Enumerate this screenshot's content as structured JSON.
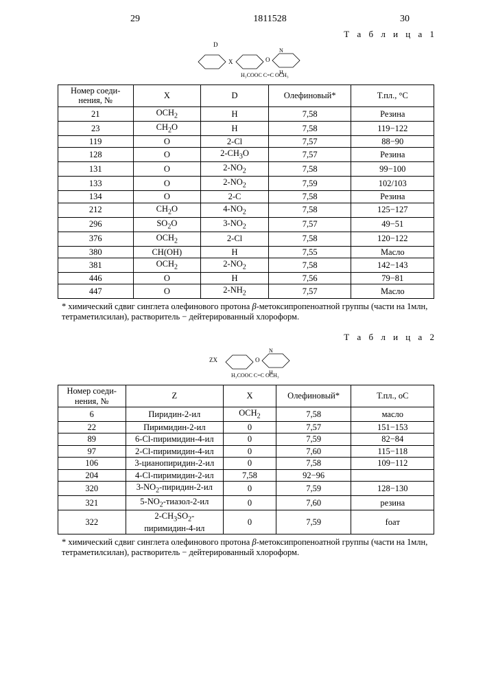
{
  "header": {
    "left_page": "29",
    "doc_number": "1811528",
    "right_page": "30"
  },
  "table1": {
    "label": "Т а б л и ц а  1",
    "chem_frag": {
      "line1": "D",
      "line2": "X",
      "line3": "O",
      "line4": "N",
      "line5": "H₃COOC    C=C    OCH₃",
      "line6": "H"
    },
    "headers": {
      "c1": "Номер соеди-\nнения, №",
      "c2": "X",
      "c3": "D",
      "c4": "Олефиновый*",
      "c5": "Т.пл., °C"
    },
    "rows": [
      {
        "n": "21",
        "x": "OCH₂",
        "d": "H",
        "o": "7,58",
        "t": "Резина"
      },
      {
        "n": "23",
        "x": "CH₂O",
        "d": "H",
        "o": "7,58",
        "t": "119−122"
      },
      {
        "n": "119",
        "x": "O",
        "d": "2-Cl",
        "o": "7,57",
        "t": "88−90"
      },
      {
        "n": "128",
        "x": "O",
        "d": "2-CH₃O",
        "o": "7,57",
        "t": "Резина"
      },
      {
        "n": "131",
        "x": "O",
        "d": "2-NO₂",
        "o": "7,58",
        "t": "99−100"
      },
      {
        "n": "133",
        "x": "O",
        "d": "2-NO₂",
        "o": "7,59",
        "t": "102/103"
      },
      {
        "n": "134",
        "x": "O",
        "d": "2-C",
        "o": "7,58",
        "t": "Резина"
      },
      {
        "n": "212",
        "x": "CH₂O",
        "d": "4-NO₂",
        "o": "7,58",
        "t": "125−127"
      },
      {
        "n": "296",
        "x": "SO₂O",
        "d": "3-NO₂",
        "o": "7,57",
        "t": "49−51"
      },
      {
        "n": "376",
        "x": "OCH₂",
        "d": "2-Cl",
        "o": "7,58",
        "t": "120−122"
      },
      {
        "n": "380",
        "x": "CH(OH)",
        "d": "H",
        "o": "7,55",
        "t": "Масло"
      },
      {
        "n": "381",
        "x": "OCH₂",
        "d": "2-NO₂",
        "o": "7,58",
        "t": "142−143"
      },
      {
        "n": "446",
        "x": "O",
        "d": "H",
        "o": "7,56",
        "t": "79−81"
      },
      {
        "n": "447",
        "x": "O",
        "d": "2-NH₂",
        "o": "7,57",
        "t": "Масло"
      }
    ],
    "footnote": "* химический сдвиг синглета олефинового протона β-метоксипропеноатной группы (части на 1млн, тетраметилсилан), растворитель − дейтерированный хлороформ."
  },
  "table2": {
    "label": "Т а б л и ц а  2",
    "chem_frag": {
      "line1": "ZX",
      "line2": "O",
      "line3": "N",
      "line4": "H₃COOC    C=C    OCH₃",
      "line5": "H"
    },
    "headers": {
      "c1": "Номер соеди-\nнения, №",
      "c2": "Z",
      "c3": "X",
      "c4": "Олефиновый*",
      "c5": "Т.пл., оС"
    },
    "rows": [
      {
        "n": "6",
        "z": "Пиридин-2-ил",
        "x": "OCH₂",
        "o": "7,58",
        "t": "масло"
      },
      {
        "n": "22",
        "z": "Пиримидин-2-ил",
        "x": "0",
        "o": "7,57",
        "t": "151−153"
      },
      {
        "n": "89",
        "z": "6-Cl-пиримидин-4-ил",
        "x": "0",
        "o": "7,59",
        "t": "82−84"
      },
      {
        "n": "97",
        "z": "2-Cl-пиримидин-4-ил",
        "x": "0",
        "o": "7,60",
        "t": "115−118"
      },
      {
        "n": "106",
        "z": "3-цианопиридин-2-ил",
        "x": "0",
        "o": "7,58",
        "t": "109−112"
      },
      {
        "n": "204",
        "z": "4-Cl-пиримидин-2-ил",
        "x": "7,58",
        "o": "92−96",
        "t": ""
      },
      {
        "n": "320",
        "z": "3-NO₂-пиридин-2-ил",
        "x": "0",
        "o": "7,59",
        "t": "128−130"
      },
      {
        "n": "321",
        "z": "5-NO₂-тиазол-2-ил",
        "x": "0",
        "o": "7,60",
        "t": "резина"
      },
      {
        "n": "322",
        "z": "2-CH₃SO₂-пиримидин-4-ил",
        "x": "0",
        "o": "7,59",
        "t": "foaт"
      }
    ],
    "footnote": "* химический сдвиг синглета олефинового протона β-метоксипропеноатной группы (части на 1млн, тетраметилсилан), растворитель − дейтерированный хлороформ."
  }
}
